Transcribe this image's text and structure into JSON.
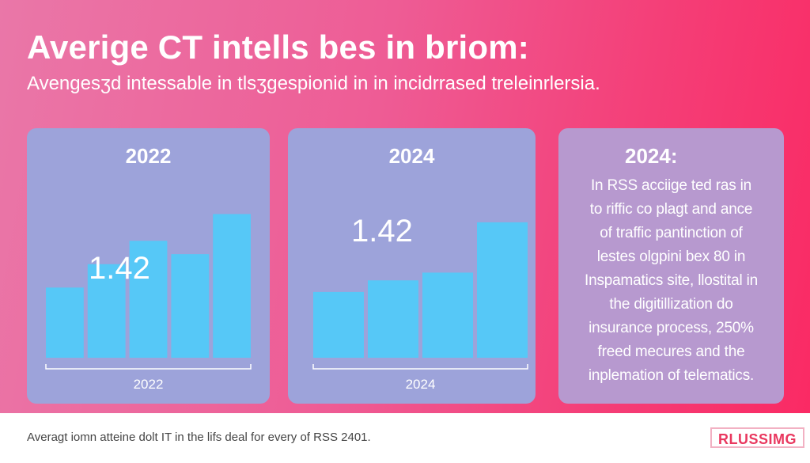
{
  "header": {
    "title": "Averige CT  intells bes in briom:",
    "subtitle": "Avengesʒd intessable in tlsʒgespionid in in incidrrased treleinrlersia."
  },
  "chart_data": [
    {
      "type": "bar",
      "panel_title": "2022",
      "xlabel": "2022",
      "value_label": "1.42",
      "values": [
        2.1,
        2.8,
        3.5,
        3.1,
        4.3
      ],
      "ylim": [
        0,
        4.5
      ],
      "bar_color": "#56c8f7"
    },
    {
      "type": "bar",
      "panel_title": "2024",
      "xlabel": "2024",
      "value_label": "1.42",
      "values": [
        1.7,
        2.0,
        2.2,
        3.5
      ],
      "ylim": [
        0,
        4.5
      ],
      "bar_color": "#56c8f7"
    }
  ],
  "info_card": {
    "title": "2024:",
    "text": "In RSS acciige ted ras in to riffic co plagt and ance of traffic pantinction of lestes olgpini bex 80 in Inspamatics site, llostital in the digitillization do insurance process, 250% freed mecures and the inplemation of telematics."
  },
  "footer": {
    "note": "Averagt iomn atteine dolt IT in the lifs deal for every of RSS 2401.",
    "brand": "RLUSSIMG"
  },
  "colors": {
    "bar": "#56c8f7",
    "chart_panel": "#9da3da",
    "text_panel": "#b799cf",
    "brand": "#e9385f"
  }
}
